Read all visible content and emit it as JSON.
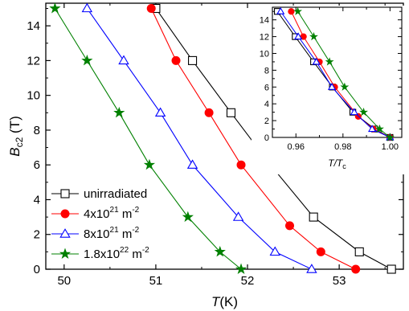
{
  "chart_data": [
    {
      "type": "line",
      "title": "",
      "xlabel": {
        "main": "T",
        "unit": "(K)"
      },
      "ylabel": {
        "main": "B",
        "sub": "c2",
        "unit": " (T)"
      },
      "xlim": [
        49.8,
        53.7
      ],
      "ylim": [
        0,
        15.3
      ],
      "xticks": [
        50,
        51,
        52,
        53
      ],
      "yticks": [
        0,
        2,
        4,
        6,
        8,
        10,
        12,
        14
      ],
      "grid": false,
      "legend_position": "bottom-left",
      "series": [
        {
          "name": "unirradiated",
          "legend": {
            "text": "unirradiated"
          },
          "color": "#000000",
          "marker": "square-open",
          "x": [
            53.57,
            53.22,
            52.72,
            52.25,
            51.82,
            51.4,
            51.0
          ],
          "y": [
            0,
            1,
            3,
            6,
            9,
            12,
            15
          ]
        },
        {
          "name": "4x10^21 m^-2",
          "legend": {
            "text": "4x10",
            "exp": "21",
            "unit": " m",
            "uexp": "-2"
          },
          "color": "#ff0000",
          "marker": "circle-filled",
          "x": [
            53.18,
            52.8,
            52.46,
            51.93,
            51.58,
            51.22,
            50.95
          ],
          "y": [
            0,
            1,
            2.5,
            6,
            9,
            12,
            15
          ]
        },
        {
          "name": "8x10^21 m^-2",
          "legend": {
            "text": "8x10",
            "exp": "21",
            "unit": " m",
            "uexp": "-2"
          },
          "color": "#0000ff",
          "marker": "triangle-open",
          "x": [
            52.7,
            52.3,
            51.9,
            51.4,
            51.05,
            50.65,
            50.25
          ],
          "y": [
            0,
            1,
            3,
            6,
            9,
            12,
            15
          ]
        },
        {
          "name": "1.8x10^22 m^-2",
          "legend": {
            "text": "1.8x10",
            "exp": "22",
            "unit": " m",
            "uexp": "-2"
          },
          "color": "#008000",
          "marker": "star-filled",
          "x": [
            51.93,
            51.7,
            51.35,
            50.93,
            50.6,
            50.25,
            49.9
          ],
          "y": [
            0,
            1,
            3,
            6,
            9,
            12,
            15
          ]
        }
      ]
    },
    {
      "type": "line",
      "title": "",
      "xlabel": {
        "main": "T/T",
        "sub": "c"
      },
      "ylabel": "",
      "xlim": [
        0.95,
        1.005
      ],
      "ylim": [
        0,
        15.5
      ],
      "xticks": [
        "0.96",
        "0.98",
        "1.00"
      ],
      "yticks": [
        0,
        2,
        4,
        6,
        8,
        10,
        12,
        14
      ],
      "grid": false,
      "series": [
        {
          "color": "#000000",
          "marker": "square-open",
          "x": [
            1.0,
            0.9935,
            0.9842,
            0.9755,
            0.9675,
            0.9597,
            0.9521
          ],
          "y": [
            0,
            1,
            3,
            6,
            9,
            12,
            15
          ]
        },
        {
          "color": "#ff0000",
          "marker": "circle-filled",
          "x": [
            1.0,
            0.9929,
            0.9865,
            0.9765,
            0.97,
            0.9632,
            0.958
          ],
          "y": [
            0,
            1,
            2.5,
            6,
            9,
            12,
            15
          ]
        },
        {
          "color": "#0000ff",
          "marker": "triangle-open",
          "x": [
            1.0,
            0.9924,
            0.9848,
            0.9753,
            0.9687,
            0.961,
            0.9535
          ],
          "y": [
            0,
            1,
            3,
            6,
            9,
            12,
            15
          ]
        },
        {
          "color": "#008000",
          "marker": "star-filled",
          "x": [
            1.0,
            0.9956,
            0.9888,
            0.9807,
            0.9743,
            0.9676,
            0.9608
          ],
          "y": [
            0,
            1,
            3,
            6,
            9,
            12,
            15
          ]
        }
      ]
    }
  ]
}
